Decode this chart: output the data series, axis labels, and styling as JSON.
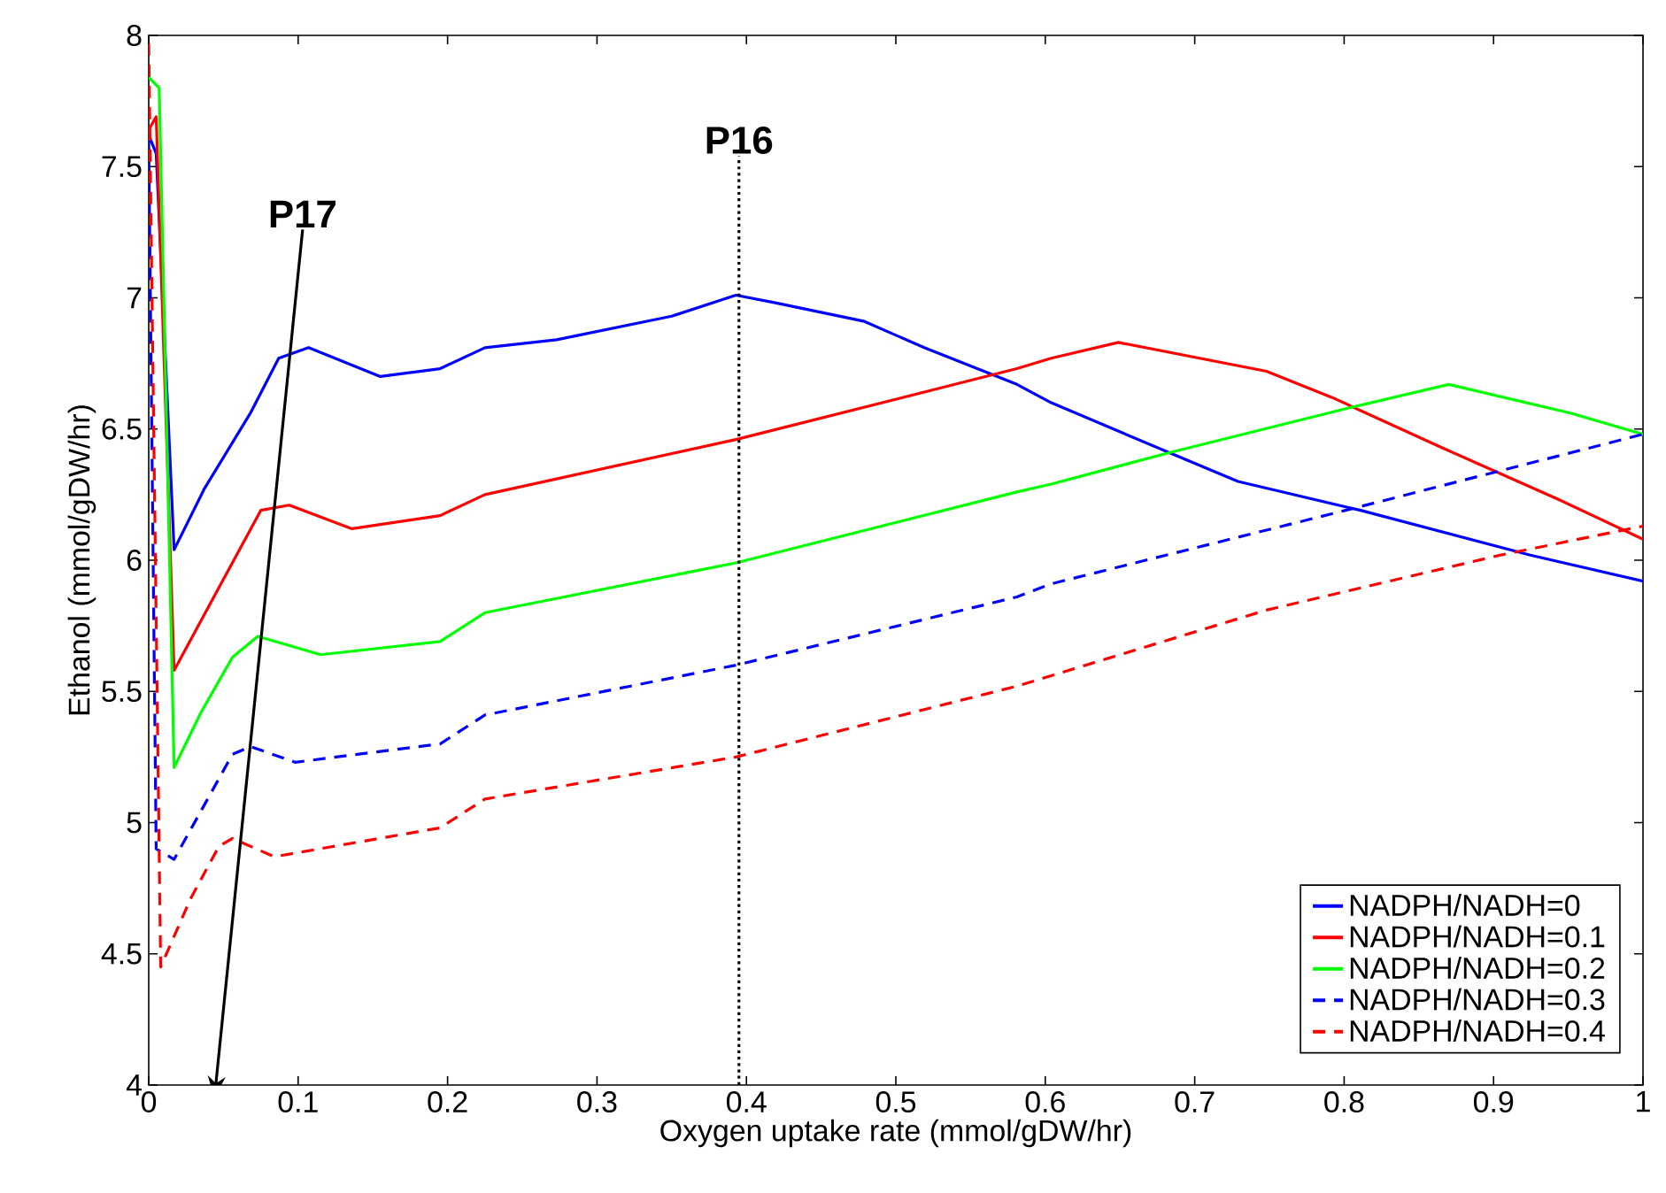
{
  "chart_data": {
    "type": "line",
    "xlabel": "Oxygen uptake rate (mmol/gDW/hr)",
    "ylabel": "Ethanol (mmol/gDW/hr)",
    "xlim": [
      0,
      1
    ],
    "ylim": [
      4,
      8
    ],
    "xticks": [
      0,
      0.1,
      0.2,
      0.3,
      0.4,
      0.5,
      0.6,
      0.7,
      0.8,
      0.9,
      1
    ],
    "yticks": [
      4,
      4.5,
      5,
      5.5,
      6,
      6.5,
      7,
      7.5,
      8
    ],
    "grid": false,
    "legend": "bottom right",
    "series": [
      {
        "name": "NADPH/NADH=0",
        "color": "#0000ff",
        "line_style": "solid",
        "x": [
          0,
          0.005,
          0.017,
          0.037,
          0.068,
          0.087,
          0.107,
          0.155,
          0.195,
          0.225,
          0.273,
          0.35,
          0.393,
          0.42,
          0.479,
          0.519,
          0.581,
          0.604,
          0.683,
          0.729,
          0.811,
          0.924,
          1
        ],
        "values": [
          7.62,
          7.55,
          6.04,
          6.27,
          6.56,
          6.77,
          6.81,
          6.7,
          6.73,
          6.81,
          6.84,
          6.93,
          7.01,
          6.98,
          6.91,
          6.81,
          6.67,
          6.6,
          6.41,
          6.3,
          6.19,
          6.02,
          5.92
        ]
      },
      {
        "name": "NADPH/NADH=0.1",
        "color": "#ff0000",
        "line_style": "solid",
        "x": [
          0,
          0.005,
          0.017,
          0.075,
          0.094,
          0.136,
          0.195,
          0.225,
          0.393,
          0.581,
          0.604,
          0.649,
          0.748,
          0.792,
          0.865,
          0.944,
          1
        ],
        "values": [
          7.64,
          7.69,
          5.58,
          6.19,
          6.21,
          6.12,
          6.17,
          6.25,
          6.46,
          6.73,
          6.77,
          6.83,
          6.72,
          6.62,
          6.43,
          6.23,
          6.08
        ]
      },
      {
        "name": "NADPH/NADH=0.2",
        "color": "#00ff00",
        "line_style": "solid",
        "x": [
          0,
          0.007,
          0.017,
          0.035,
          0.056,
          0.073,
          0.115,
          0.195,
          0.225,
          0.393,
          0.581,
          0.604,
          0.683,
          0.803,
          0.87,
          0.952,
          1
        ],
        "values": [
          7.84,
          7.8,
          5.21,
          5.42,
          5.63,
          5.71,
          5.64,
          5.69,
          5.8,
          5.99,
          6.26,
          6.29,
          6.41,
          6.58,
          6.67,
          6.56,
          6.48
        ]
      },
      {
        "name": "NADPH/NADH=0.3",
        "color": "#0000ff",
        "line_style": "dashed",
        "x": [
          0,
          0.005,
          0.017,
          0.056,
          0.068,
          0.098,
          0.195,
          0.225,
          0.393,
          0.581,
          0.604,
          0.801,
          1
        ],
        "values": [
          7.6,
          4.9,
          4.86,
          5.26,
          5.29,
          5.23,
          5.3,
          5.41,
          5.6,
          5.86,
          5.91,
          6.19,
          6.48
        ]
      },
      {
        "name": "NADPH/NADH=0.4",
        "color": "#ff0000",
        "line_style": "dashed",
        "x": [
          0,
          0.008,
          0.028,
          0.047,
          0.056,
          0.084,
          0.195,
          0.225,
          0.393,
          0.581,
          0.604,
          0.748,
          0.905,
          1
        ],
        "values": [
          7.97,
          4.45,
          4.71,
          4.91,
          4.94,
          4.87,
          4.98,
          5.09,
          5.25,
          5.52,
          5.56,
          5.81,
          6.02,
          6.13
        ]
      }
    ],
    "ref_lines": [
      {
        "axis": "x",
        "value": 0.395,
        "label": "P16",
        "color": "#000000",
        "line_style": "dotted"
      }
    ],
    "annotations": [
      "P17"
    ]
  }
}
